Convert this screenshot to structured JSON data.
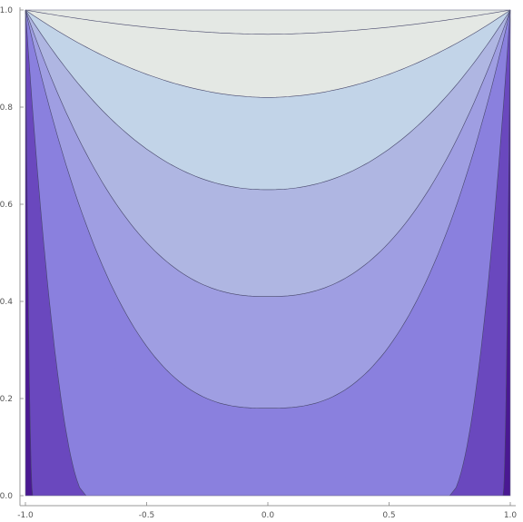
{
  "chart_data": {
    "type": "contour",
    "title": "",
    "xlabel": "",
    "ylabel": "",
    "xlim": [
      -1.0,
      1.0
    ],
    "ylim": [
      0.0,
      1.0
    ],
    "x_ticks": [
      "-1.0",
      "-0.5",
      "0.0",
      "0.5",
      "1.0"
    ],
    "x_tick_values": [
      -1.0,
      -0.5,
      0.0,
      0.5,
      1.0
    ],
    "y_ticks": [
      "0.0",
      "0.2",
      "0.4",
      "0.6",
      "0.8",
      "1.0"
    ],
    "y_tick_values": [
      0.0,
      0.2,
      0.4,
      0.6,
      0.8,
      1.0
    ],
    "contour_minima_at_x0": [
      0.0,
      0.18,
      0.41,
      0.63,
      0.82,
      0.95
    ],
    "band_colors": [
      "#4a1892",
      "#6a48be",
      "#8a80de",
      "#9f9ee2",
      "#afb6e2",
      "#c2d4e8",
      "#e4e8e4"
    ],
    "line_color": "#46466a",
    "grid": false
  }
}
